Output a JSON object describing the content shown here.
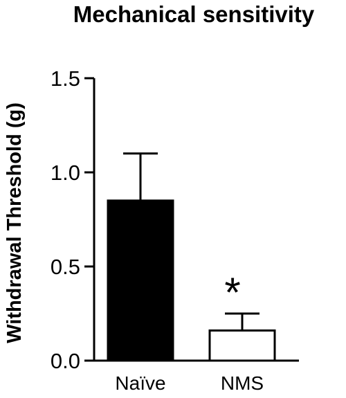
{
  "chart_data": {
    "type": "bar",
    "title": "Mechanical sensitivity",
    "xlabel": "",
    "ylabel": "Withdrawal Threshold (g)",
    "categories": [
      "Naïve",
      "NMS"
    ],
    "values": [
      0.85,
      0.16
    ],
    "errors": [
      0.25,
      0.09
    ],
    "bar_fills": [
      "#000000",
      "#ffffff"
    ],
    "annotations": [
      "",
      "*"
    ],
    "ylim": [
      0,
      1.5
    ],
    "yticks": [
      0.0,
      0.5,
      1.0,
      1.5
    ],
    "ytick_labels": [
      "0.0",
      "0.5",
      "1.0",
      "1.5"
    ],
    "grid": false,
    "legend": "none"
  }
}
